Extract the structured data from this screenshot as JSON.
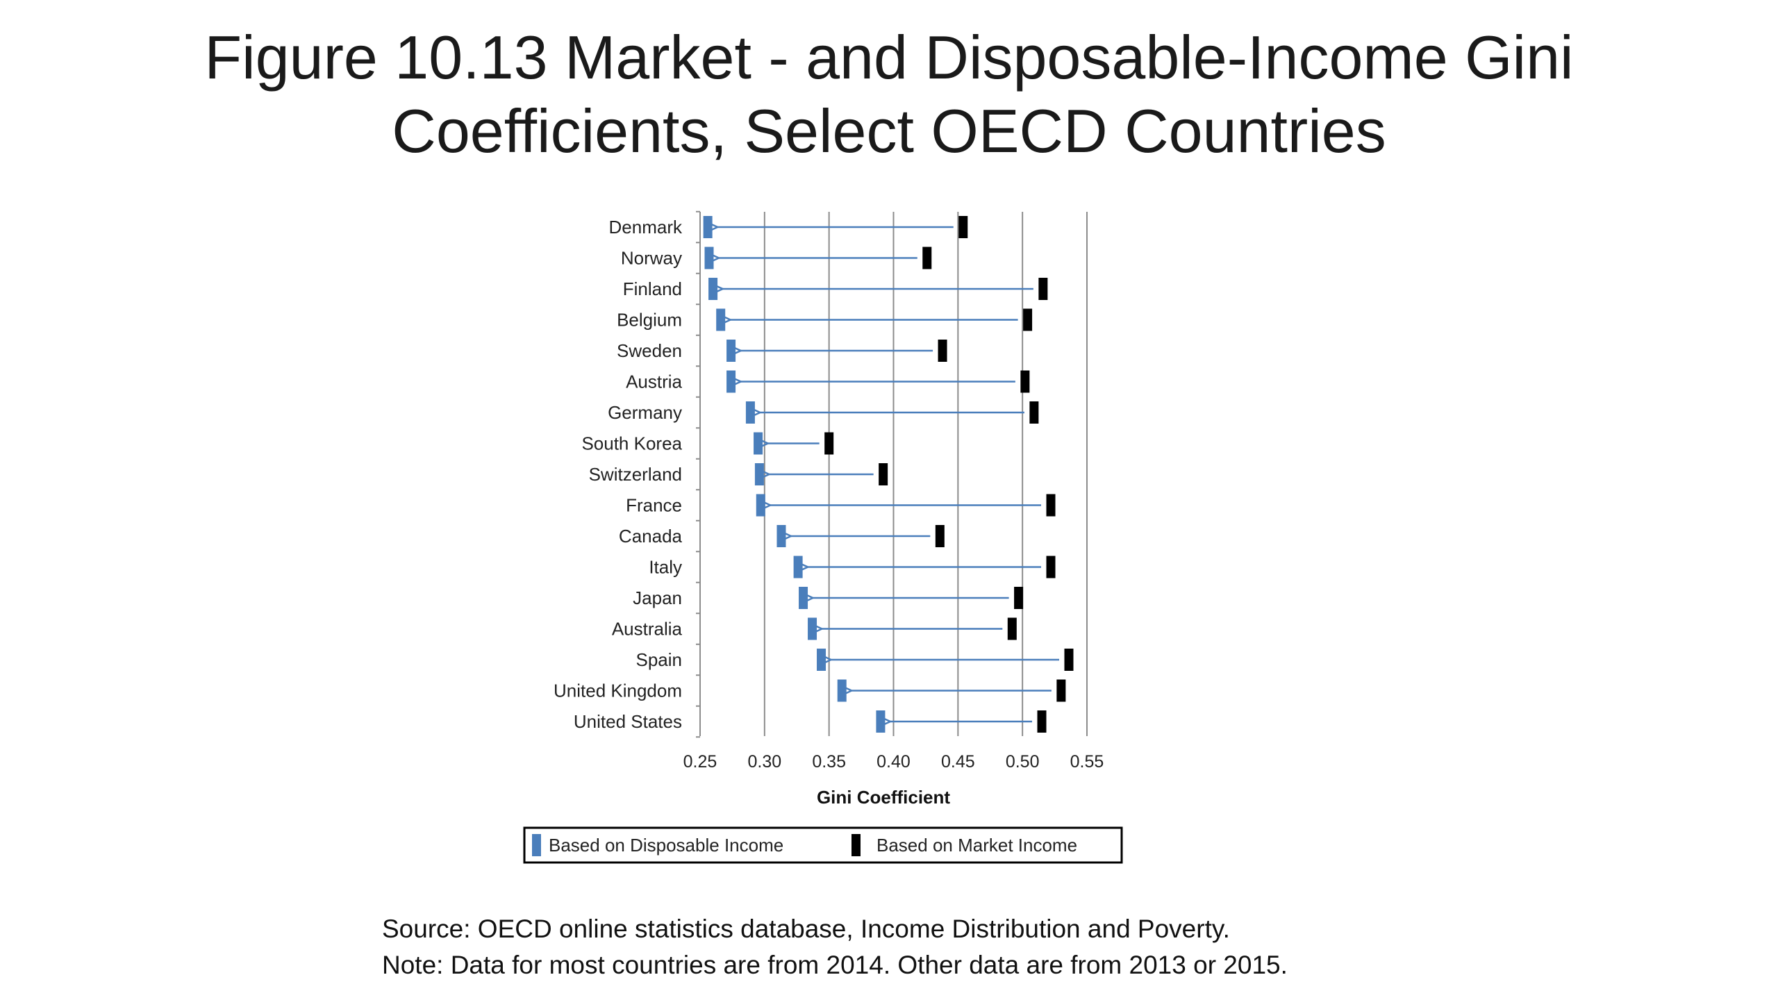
{
  "title_line1": "Figure 10.13 Market - and Disposable-Income Gini",
  "title_line2": "Coefficients, Select OECD Countries",
  "source": "Source: OECD online statistics database, Income Distribution and Poverty.",
  "note": "Note: Data for most countries are from 2014. Other data are from 2013 or 2015.",
  "colors": {
    "disposable": "#4a7ebb",
    "market": "#000000",
    "arrow": "#4a7ebb",
    "grid": "#8c8c8c"
  },
  "chart_data": {
    "type": "dot-arrow",
    "xlabel": "Gini Coefficient",
    "xlim": [
      0.25,
      0.55
    ],
    "ticks": [
      "0.25",
      "0.30",
      "0.35",
      "0.40",
      "0.45",
      "0.50",
      "0.55"
    ],
    "grid": "vertical",
    "legend_position": "bottom",
    "categories": [
      "Denmark",
      "Norway",
      "Finland",
      "Belgium",
      "Sweden",
      "Austria",
      "Germany",
      "South Korea",
      "Switzerland",
      "France",
      "Canada",
      "Italy",
      "Japan",
      "Australia",
      "Spain",
      "United Kingdom",
      "United States"
    ],
    "series": [
      {
        "name": "Based on Disposable Income",
        "values": [
          0.256,
          0.257,
          0.26,
          0.266,
          0.274,
          0.274,
          0.289,
          0.295,
          0.296,
          0.297,
          0.313,
          0.326,
          0.33,
          0.337,
          0.344,
          0.36,
          0.39
        ]
      },
      {
        "name": "Based on Market Income",
        "values": [
          0.454,
          0.426,
          0.516,
          0.504,
          0.438,
          0.502,
          0.509,
          0.35,
          0.392,
          0.522,
          0.436,
          0.522,
          0.497,
          0.492,
          0.536,
          0.53,
          0.515
        ]
      }
    ]
  }
}
